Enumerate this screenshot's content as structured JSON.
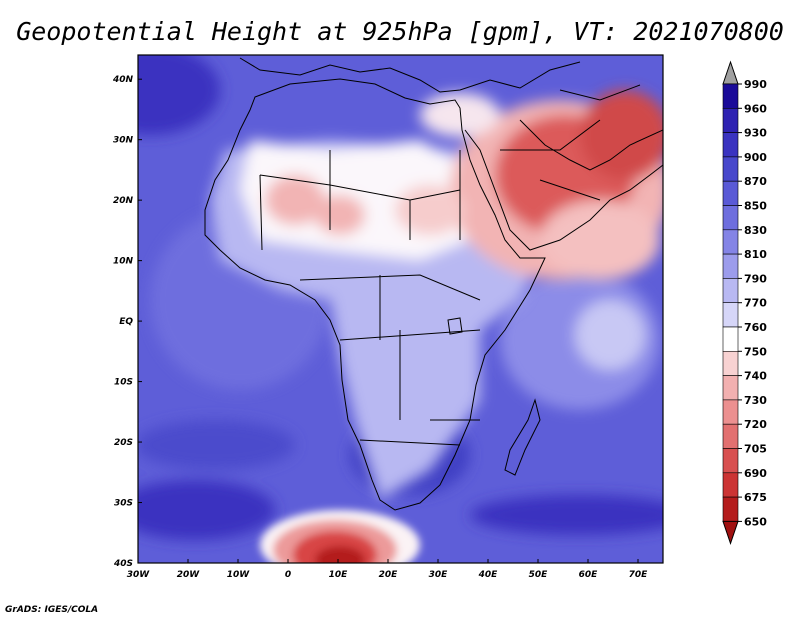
{
  "title": "Geopotential Height at 925hPa [gpm], VT: 2021070800",
  "credit": "GrADS: IGES/COLA",
  "x_tick_labels": [
    "30W",
    "20W",
    "10W",
    "0",
    "10E",
    "20E",
    "30E",
    "40E",
    "50E",
    "60E",
    "70E"
  ],
  "y_tick_labels": [
    "40N",
    "30N",
    "20N",
    "10N",
    "EQ",
    "10S",
    "20S",
    "30S",
    "40S"
  ],
  "colorbar": {
    "levels": [
      "990",
      "960",
      "930",
      "900",
      "870",
      "850",
      "830",
      "810",
      "790",
      "770",
      "760",
      "750",
      "740",
      "730",
      "720",
      "705",
      "690",
      "675",
      "650"
    ],
    "colors": [
      "#a0a0a0",
      "#1a0a99",
      "#2e22b2",
      "#3a33c0",
      "#4848cc",
      "#5a5ad6",
      "#6e6ede",
      "#8484e6",
      "#9c9cec",
      "#b8b8f2",
      "#d6d6f8",
      "#ffffff",
      "#f8d2d2",
      "#f2b0b0",
      "#ec9090",
      "#e27070",
      "#d85050",
      "#cc3434",
      "#b41c1c",
      "#a01010"
    ]
  },
  "map": {
    "lon_range": [
      -30,
      75
    ],
    "lat_range": [
      -40,
      44
    ],
    "field_colors": {
      "ocean_base": "#5e5ed8",
      "deep_blue": "#3a33c0",
      "land_light": "#c8c8f4",
      "white": "#fbf7fb",
      "pink": "#f2b4b4",
      "red": "#dc5a5a",
      "deep_red": "#b82020"
    }
  }
}
